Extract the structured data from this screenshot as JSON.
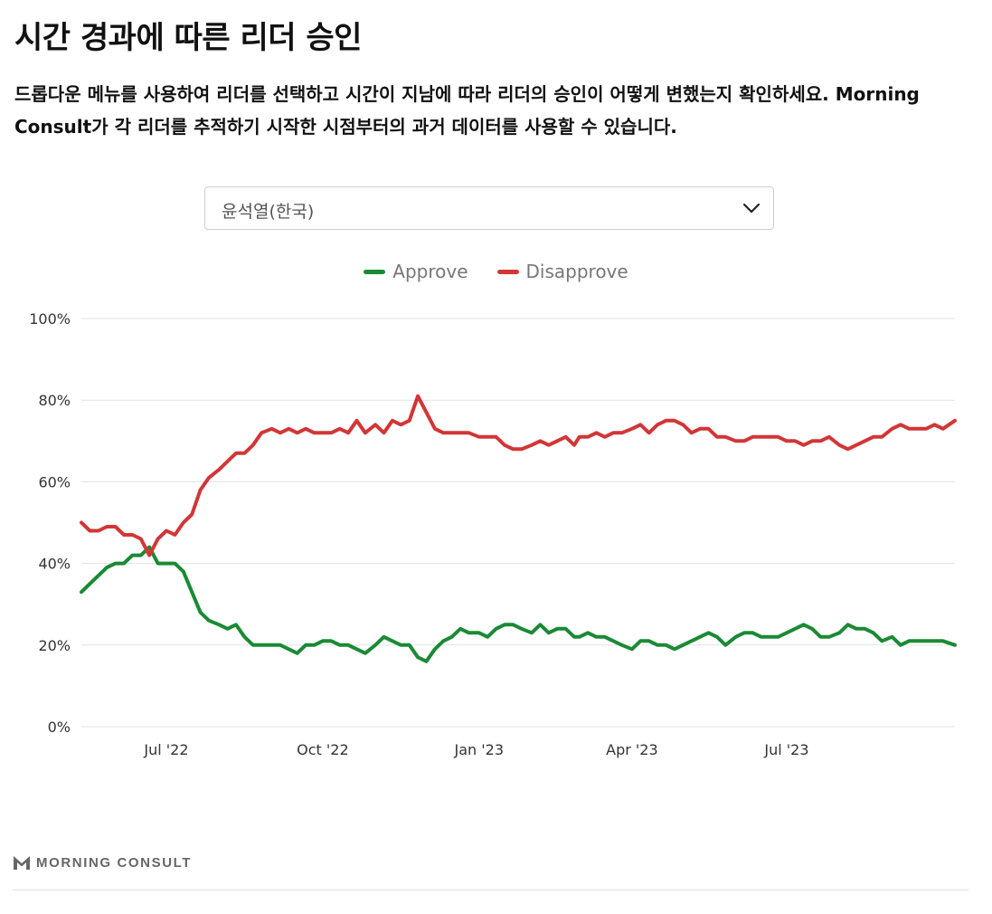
{
  "header": {
    "title": "시간 경과에 따른 리더 승인",
    "description": "드롭다운 메뉴를 사용하여 리더를 선택하고 시간이 지남에 따라 리더의 승인이 어떻게 변했는지 확인하세요. Morning Consult가 각 리더를 추적하기 시작한 시점부터의 과거 데이터를 사용할 수 있습니다."
  },
  "selector": {
    "selected": "윤석열(한국)",
    "icon": "chevron-down-icon"
  },
  "brand": {
    "logo_text": "MORNING CONSULT",
    "icon": "morning-consult-logo-icon"
  },
  "colors": {
    "approve": "#1a8a35",
    "disapprove": "#d23637",
    "grid": "#e3e3e3",
    "axis_text": "#333333"
  },
  "chart_data": {
    "type": "line",
    "title": "",
    "xlabel": "",
    "ylabel": "",
    "x_range": [
      "2022-05-12",
      "2023-10-08"
    ],
    "ylim": [
      0,
      100
    ],
    "y_ticks": [
      0,
      20,
      40,
      60,
      80,
      100
    ],
    "y_tick_labels": [
      "0%",
      "20%",
      "40%",
      "60%",
      "80%",
      "100%"
    ],
    "x_ticks": [
      "2022-07-01",
      "2022-10-01",
      "2023-01-01",
      "2023-04-01",
      "2023-07-01"
    ],
    "x_tick_labels": [
      "Jul '22",
      "Oct '22",
      "Jan '23",
      "Apr '23",
      "Jul '23"
    ],
    "grid": true,
    "legend": "top-center",
    "series": [
      {
        "name": "Approve",
        "color": "#1a8a35",
        "points": [
          [
            "2022-05-12",
            33
          ],
          [
            "2022-05-17",
            35
          ],
          [
            "2022-05-22",
            37
          ],
          [
            "2022-05-27",
            39
          ],
          [
            "2022-06-01",
            40
          ],
          [
            "2022-06-06",
            40
          ],
          [
            "2022-06-11",
            42
          ],
          [
            "2022-06-16",
            42
          ],
          [
            "2022-06-21",
            44
          ],
          [
            "2022-06-26",
            40
          ],
          [
            "2022-07-01",
            40
          ],
          [
            "2022-07-06",
            40
          ],
          [
            "2022-07-11",
            38
          ],
          [
            "2022-07-16",
            33
          ],
          [
            "2022-07-21",
            28
          ],
          [
            "2022-07-26",
            26
          ],
          [
            "2022-08-01",
            25
          ],
          [
            "2022-08-06",
            24
          ],
          [
            "2022-08-11",
            25
          ],
          [
            "2022-08-16",
            22
          ],
          [
            "2022-08-21",
            20
          ],
          [
            "2022-08-26",
            20
          ],
          [
            "2022-09-01",
            20
          ],
          [
            "2022-09-06",
            20
          ],
          [
            "2022-09-11",
            19
          ],
          [
            "2022-09-16",
            18
          ],
          [
            "2022-09-21",
            20
          ],
          [
            "2022-09-26",
            20
          ],
          [
            "2022-10-01",
            21
          ],
          [
            "2022-10-06",
            21
          ],
          [
            "2022-10-11",
            20
          ],
          [
            "2022-10-16",
            20
          ],
          [
            "2022-10-21",
            19
          ],
          [
            "2022-10-26",
            18
          ],
          [
            "2022-11-01",
            20
          ],
          [
            "2022-11-06",
            22
          ],
          [
            "2022-11-11",
            21
          ],
          [
            "2022-11-16",
            20
          ],
          [
            "2022-11-21",
            20
          ],
          [
            "2022-11-26",
            17
          ],
          [
            "2022-12-01",
            16
          ],
          [
            "2022-12-06",
            19
          ],
          [
            "2022-12-11",
            21
          ],
          [
            "2022-12-16",
            22
          ],
          [
            "2022-12-21",
            24
          ],
          [
            "2022-12-26",
            23
          ],
          [
            "2023-01-01",
            23
          ],
          [
            "2023-01-06",
            22
          ],
          [
            "2023-01-11",
            24
          ],
          [
            "2023-01-16",
            25
          ],
          [
            "2023-01-21",
            25
          ],
          [
            "2023-01-26",
            24
          ],
          [
            "2023-02-01",
            23
          ],
          [
            "2023-02-06",
            25
          ],
          [
            "2023-02-11",
            23
          ],
          [
            "2023-02-16",
            24
          ],
          [
            "2023-02-21",
            24
          ],
          [
            "2023-02-26",
            22
          ],
          [
            "2023-03-01",
            22
          ],
          [
            "2023-03-06",
            23
          ],
          [
            "2023-03-11",
            22
          ],
          [
            "2023-03-16",
            22
          ],
          [
            "2023-03-21",
            21
          ],
          [
            "2023-03-26",
            20
          ],
          [
            "2023-04-01",
            19
          ],
          [
            "2023-04-06",
            21
          ],
          [
            "2023-04-11",
            21
          ],
          [
            "2023-04-16",
            20
          ],
          [
            "2023-04-21",
            20
          ],
          [
            "2023-04-26",
            19
          ],
          [
            "2023-05-01",
            20
          ],
          [
            "2023-05-06",
            21
          ],
          [
            "2023-05-11",
            22
          ],
          [
            "2023-05-16",
            23
          ],
          [
            "2023-05-21",
            22
          ],
          [
            "2023-05-26",
            20
          ],
          [
            "2023-06-01",
            22
          ],
          [
            "2023-06-06",
            23
          ],
          [
            "2023-06-11",
            23
          ],
          [
            "2023-06-16",
            22
          ],
          [
            "2023-06-21",
            22
          ],
          [
            "2023-06-26",
            22
          ],
          [
            "2023-07-01",
            23
          ],
          [
            "2023-07-06",
            24
          ],
          [
            "2023-07-11",
            25
          ],
          [
            "2023-07-16",
            24
          ],
          [
            "2023-07-21",
            22
          ],
          [
            "2023-07-26",
            22
          ],
          [
            "2023-08-01",
            23
          ],
          [
            "2023-08-06",
            25
          ],
          [
            "2023-08-11",
            24
          ],
          [
            "2023-08-16",
            24
          ],
          [
            "2023-08-21",
            23
          ],
          [
            "2023-08-26",
            21
          ],
          [
            "2023-09-01",
            22
          ],
          [
            "2023-09-06",
            20
          ],
          [
            "2023-09-11",
            21
          ],
          [
            "2023-09-16",
            21
          ],
          [
            "2023-09-21",
            21
          ],
          [
            "2023-09-26",
            21
          ],
          [
            "2023-10-01",
            21
          ],
          [
            "2023-10-08",
            20
          ]
        ]
      },
      {
        "name": "Disapprove",
        "color": "#d23637",
        "points": [
          [
            "2022-05-12",
            50
          ],
          [
            "2022-05-17",
            48
          ],
          [
            "2022-05-22",
            48
          ],
          [
            "2022-05-27",
            49
          ],
          [
            "2022-06-01",
            49
          ],
          [
            "2022-06-06",
            47
          ],
          [
            "2022-06-11",
            47
          ],
          [
            "2022-06-16",
            46
          ],
          [
            "2022-06-21",
            42
          ],
          [
            "2022-06-26",
            46
          ],
          [
            "2022-07-01",
            48
          ],
          [
            "2022-07-06",
            47
          ],
          [
            "2022-07-11",
            50
          ],
          [
            "2022-07-16",
            52
          ],
          [
            "2022-07-21",
            58
          ],
          [
            "2022-07-26",
            61
          ],
          [
            "2022-08-01",
            63
          ],
          [
            "2022-08-06",
            65
          ],
          [
            "2022-08-11",
            67
          ],
          [
            "2022-08-16",
            67
          ],
          [
            "2022-08-21",
            69
          ],
          [
            "2022-08-26",
            72
          ],
          [
            "2022-09-01",
            73
          ],
          [
            "2022-09-06",
            72
          ],
          [
            "2022-09-11",
            73
          ],
          [
            "2022-09-16",
            72
          ],
          [
            "2022-09-21",
            73
          ],
          [
            "2022-09-26",
            72
          ],
          [
            "2022-10-01",
            72
          ],
          [
            "2022-10-06",
            72
          ],
          [
            "2022-10-11",
            73
          ],
          [
            "2022-10-16",
            72
          ],
          [
            "2022-10-21",
            75
          ],
          [
            "2022-10-26",
            72
          ],
          [
            "2022-11-01",
            74
          ],
          [
            "2022-11-06",
            72
          ],
          [
            "2022-11-11",
            75
          ],
          [
            "2022-11-16",
            74
          ],
          [
            "2022-11-21",
            75
          ],
          [
            "2022-11-26",
            81
          ],
          [
            "2022-12-01",
            77
          ],
          [
            "2022-12-06",
            73
          ],
          [
            "2022-12-11",
            72
          ],
          [
            "2022-12-16",
            72
          ],
          [
            "2022-12-21",
            72
          ],
          [
            "2022-12-26",
            72
          ],
          [
            "2023-01-01",
            71
          ],
          [
            "2023-01-06",
            71
          ],
          [
            "2023-01-11",
            71
          ],
          [
            "2023-01-16",
            69
          ],
          [
            "2023-01-21",
            68
          ],
          [
            "2023-01-26",
            68
          ],
          [
            "2023-02-01",
            69
          ],
          [
            "2023-02-06",
            70
          ],
          [
            "2023-02-11",
            69
          ],
          [
            "2023-02-16",
            70
          ],
          [
            "2023-02-21",
            71
          ],
          [
            "2023-02-26",
            69
          ],
          [
            "2023-03-01",
            71
          ],
          [
            "2023-03-06",
            71
          ],
          [
            "2023-03-11",
            72
          ],
          [
            "2023-03-16",
            71
          ],
          [
            "2023-03-21",
            72
          ],
          [
            "2023-03-26",
            72
          ],
          [
            "2023-04-01",
            73
          ],
          [
            "2023-04-06",
            74
          ],
          [
            "2023-04-11",
            72
          ],
          [
            "2023-04-16",
            74
          ],
          [
            "2023-04-21",
            75
          ],
          [
            "2023-04-26",
            75
          ],
          [
            "2023-05-01",
            74
          ],
          [
            "2023-05-06",
            72
          ],
          [
            "2023-05-11",
            73
          ],
          [
            "2023-05-16",
            73
          ],
          [
            "2023-05-21",
            71
          ],
          [
            "2023-05-26",
            71
          ],
          [
            "2023-06-01",
            70
          ],
          [
            "2023-06-06",
            70
          ],
          [
            "2023-06-11",
            71
          ],
          [
            "2023-06-16",
            71
          ],
          [
            "2023-06-21",
            71
          ],
          [
            "2023-06-26",
            71
          ],
          [
            "2023-07-01",
            70
          ],
          [
            "2023-07-06",
            70
          ],
          [
            "2023-07-11",
            69
          ],
          [
            "2023-07-16",
            70
          ],
          [
            "2023-07-21",
            70
          ],
          [
            "2023-07-26",
            71
          ],
          [
            "2023-08-01",
            69
          ],
          [
            "2023-08-06",
            68
          ],
          [
            "2023-08-11",
            69
          ],
          [
            "2023-08-16",
            70
          ],
          [
            "2023-08-21",
            71
          ],
          [
            "2023-08-26",
            71
          ],
          [
            "2023-09-01",
            73
          ],
          [
            "2023-09-06",
            74
          ],
          [
            "2023-09-11",
            73
          ],
          [
            "2023-09-16",
            73
          ],
          [
            "2023-09-21",
            73
          ],
          [
            "2023-09-26",
            74
          ],
          [
            "2023-10-01",
            73
          ],
          [
            "2023-10-08",
            75
          ]
        ]
      }
    ]
  }
}
